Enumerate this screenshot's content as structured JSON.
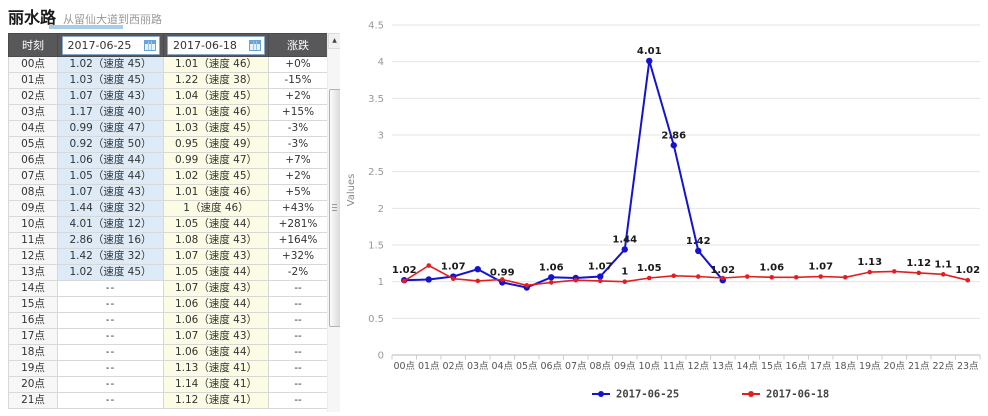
{
  "page": {
    "title": "丽水路",
    "subtitle": "从留仙大道到西丽路"
  },
  "table": {
    "time_header": "时刻",
    "change_header": "涨跌",
    "date1_value": "2017-06-25",
    "date2_value": "2017-06-18",
    "rows": [
      {
        "time": "00点",
        "v1": "1.02（速度 45）",
        "v2": "1.01（速度 46）",
        "change": "+0%",
        "trend": "up"
      },
      {
        "time": "01点",
        "v1": "1.03（速度 45）",
        "v2": "1.22（速度 38）",
        "change": "-15%",
        "trend": "down"
      },
      {
        "time": "02点",
        "v1": "1.07（速度 43）",
        "v2": "1.04（速度 45）",
        "change": "+2%",
        "trend": "up"
      },
      {
        "time": "03点",
        "v1": "1.17（速度 40）",
        "v2": "1.01（速度 46）",
        "change": "+15%",
        "trend": "up"
      },
      {
        "time": "04点",
        "v1": "0.99（速度 47）",
        "v2": "1.03（速度 45）",
        "change": "-3%",
        "trend": "down"
      },
      {
        "time": "05点",
        "v1": "0.92（速度 50）",
        "v2": "0.95（速度 49）",
        "change": "-3%",
        "trend": "down"
      },
      {
        "time": "06点",
        "v1": "1.06（速度 44）",
        "v2": "0.99（速度 47）",
        "change": "+7%",
        "trend": "up"
      },
      {
        "time": "07点",
        "v1": "1.05（速度 44）",
        "v2": "1.02（速度 45）",
        "change": "+2%",
        "trend": "up"
      },
      {
        "time": "08点",
        "v1": "1.07（速度 43）",
        "v2": "1.01（速度 46）",
        "change": "+5%",
        "trend": "up"
      },
      {
        "time": "09点",
        "v1": "1.44（速度 32）",
        "v2": "1（速度 46）",
        "change": "+43%",
        "trend": "up"
      },
      {
        "time": "10点",
        "v1": "4.01（速度 12）",
        "v2": "1.05（速度 44）",
        "change": "+281%",
        "trend": "up"
      },
      {
        "time": "11点",
        "v1": "2.86（速度 16）",
        "v2": "1.08（速度 43）",
        "change": "+164%",
        "trend": "up"
      },
      {
        "time": "12点",
        "v1": "1.42（速度 32）",
        "v2": "1.07（速度 43）",
        "change": "+32%",
        "trend": "up"
      },
      {
        "time": "13点",
        "v1": "1.02（速度 45）",
        "v2": "1.05（速度 44）",
        "change": "-2%",
        "trend": "down"
      },
      {
        "time": "14点",
        "v1": "--",
        "v2": "1.07（速度 43）",
        "change": "--",
        "trend": "flat"
      },
      {
        "time": "15点",
        "v1": "--",
        "v2": "1.06（速度 44）",
        "change": "--",
        "trend": "flat"
      },
      {
        "time": "16点",
        "v1": "--",
        "v2": "1.06（速度 43）",
        "change": "--",
        "trend": "flat"
      },
      {
        "time": "17点",
        "v1": "--",
        "v2": "1.07（速度 43）",
        "change": "--",
        "trend": "flat"
      },
      {
        "time": "18点",
        "v1": "--",
        "v2": "1.06（速度 44）",
        "change": "--",
        "trend": "flat"
      },
      {
        "time": "19点",
        "v1": "--",
        "v2": "1.13（速度 41）",
        "change": "--",
        "trend": "flat"
      },
      {
        "time": "20点",
        "v1": "--",
        "v2": "1.14（速度 41）",
        "change": "--",
        "trend": "flat"
      },
      {
        "time": "21点",
        "v1": "--",
        "v2": "1.12（速度 41）",
        "change": "--",
        "trend": "flat"
      }
    ]
  },
  "scrollbar": {
    "up_arrow": "▲"
  },
  "colors": {
    "up": "#e00000",
    "down": "#2e8b2e",
    "header_bg": "#58585a",
    "date1_col_bg": "#dcebf7",
    "date2_col_bg": "#fcfce5",
    "series1": "#1414cf",
    "series2": "#e02020"
  },
  "chart_data": {
    "type": "line",
    "title": "",
    "xlabel": "",
    "ylabel": "Values",
    "ylim": [
      0,
      4.5
    ],
    "ytick_step": 0.5,
    "grid": true,
    "legend_position": "bottom",
    "categories": [
      "00点",
      "01点",
      "02点",
      "03点",
      "04点",
      "05点",
      "06点",
      "07点",
      "08点",
      "09点",
      "10点",
      "11点",
      "12点",
      "13点",
      "14点",
      "15点",
      "16点",
      "17点",
      "18点",
      "19点",
      "20点",
      "21点",
      "22点",
      "23点"
    ],
    "series": [
      {
        "name": "2017-06-25",
        "color": "#1414cf",
        "values": [
          1.02,
          1.03,
          1.07,
          1.17,
          0.99,
          0.92,
          1.06,
          1.05,
          1.07,
          1.44,
          4.01,
          2.86,
          1.42,
          1.02,
          null,
          null,
          null,
          null,
          null,
          null,
          null,
          null,
          null,
          null
        ]
      },
      {
        "name": "2017-06-18",
        "color": "#e02020",
        "values": [
          1.01,
          1.22,
          1.04,
          1.01,
          1.03,
          0.95,
          0.99,
          1.02,
          1.01,
          1.0,
          1.05,
          1.08,
          1.07,
          1.05,
          1.07,
          1.06,
          1.06,
          1.07,
          1.06,
          1.13,
          1.14,
          1.12,
          1.1,
          1.02
        ]
      }
    ],
    "point_labels": [
      {
        "series": 0,
        "index": 0,
        "text": "1.02"
      },
      {
        "series": 0,
        "index": 2,
        "text": "1.07"
      },
      {
        "series": 0,
        "index": 4,
        "text": "0.99"
      },
      {
        "series": 0,
        "index": 6,
        "text": "1.06"
      },
      {
        "series": 0,
        "index": 8,
        "text": "1.07"
      },
      {
        "series": 0,
        "index": 9,
        "text": "1.44"
      },
      {
        "series": 0,
        "index": 10,
        "text": "4.01"
      },
      {
        "series": 0,
        "index": 11,
        "text": "2.86"
      },
      {
        "series": 0,
        "index": 12,
        "text": "1.42"
      },
      {
        "series": 0,
        "index": 13,
        "text": "1.02"
      },
      {
        "series": 1,
        "index": 9,
        "text": "1"
      },
      {
        "series": 1,
        "index": 10,
        "text": "1.05"
      },
      {
        "series": 1,
        "index": 15,
        "text": "1.06"
      },
      {
        "series": 1,
        "index": 17,
        "text": "1.07"
      },
      {
        "series": 1,
        "index": 19,
        "text": "1.13"
      },
      {
        "series": 1,
        "index": 21,
        "text": "1.12"
      },
      {
        "series": 1,
        "index": 22,
        "text": "1.1"
      },
      {
        "series": 1,
        "index": 23,
        "text": "1.02"
      }
    ]
  }
}
